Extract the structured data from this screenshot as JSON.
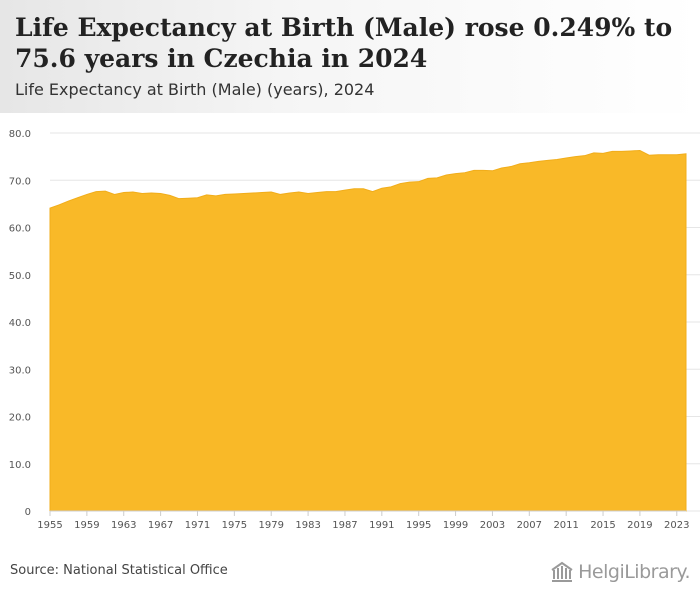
{
  "header": {
    "title": "Life Expectancy at Birth (Male) rose 0.249% to 75.6 years in Czechia in 2024",
    "subtitle": "Life Expectancy at Birth (Male) (years), 2024"
  },
  "footer": {
    "source": "Source: National Statistical Office",
    "logo_text": "HelgiLibrary."
  },
  "colors": {
    "area": "#f9b928",
    "area_edge": "#f1ad1a",
    "grid": "#e6e6e6",
    "axis": "#cccccc",
    "tick_text": "#555555"
  },
  "chart_data": {
    "type": "area",
    "title": "Life Expectancy at Birth (Male) rose 0.249% to 75.6 years in Czechia in 2024",
    "subtitle": "Life Expectancy at Birth (Male) (years), 2024",
    "ylim": [
      0,
      80
    ],
    "yticks": [
      0,
      10,
      20,
      30,
      40,
      50,
      60,
      70,
      80
    ],
    "ytick_labels": [
      "0",
      "10.0",
      "20.0",
      "30.0",
      "40.0",
      "50.0",
      "60.0",
      "70.0",
      "80.0"
    ],
    "xlim": [
      1955,
      2024
    ],
    "xticks": [
      1955,
      1959,
      1963,
      1967,
      1971,
      1975,
      1979,
      1983,
      1987,
      1991,
      1995,
      1999,
      2003,
      2007,
      2011,
      2015,
      2019,
      2023
    ],
    "grid": true,
    "x": [
      1955,
      1956,
      1957,
      1958,
      1959,
      1960,
      1961,
      1962,
      1963,
      1964,
      1965,
      1966,
      1967,
      1968,
      1969,
      1970,
      1971,
      1972,
      1973,
      1974,
      1975,
      1976,
      1977,
      1978,
      1979,
      1980,
      1981,
      1982,
      1983,
      1984,
      1985,
      1986,
      1987,
      1988,
      1989,
      1990,
      1991,
      1992,
      1993,
      1994,
      1995,
      1996,
      1997,
      1998,
      1999,
      2000,
      2001,
      2002,
      2003,
      2004,
      2005,
      2006,
      2007,
      2008,
      2009,
      2010,
      2011,
      2012,
      2013,
      2014,
      2015,
      2016,
      2017,
      2018,
      2019,
      2020,
      2021,
      2022,
      2023,
      2024
    ],
    "values": [
      64.1,
      64.8,
      65.6,
      66.3,
      67.0,
      67.6,
      67.7,
      67.0,
      67.4,
      67.5,
      67.2,
      67.3,
      67.2,
      66.8,
      66.1,
      66.2,
      66.3,
      66.9,
      66.7,
      67.0,
      67.1,
      67.2,
      67.3,
      67.4,
      67.5,
      67.0,
      67.3,
      67.5,
      67.2,
      67.4,
      67.6,
      67.6,
      67.9,
      68.2,
      68.2,
      67.6,
      68.3,
      68.6,
      69.3,
      69.6,
      69.7,
      70.4,
      70.5,
      71.1,
      71.4,
      71.6,
      72.1,
      72.1,
      72.0,
      72.6,
      72.9,
      73.5,
      73.7,
      74.0,
      74.2,
      74.4,
      74.7,
      75.0,
      75.2,
      75.8,
      75.7,
      76.1,
      76.1,
      76.2,
      76.3,
      75.3,
      75.4,
      75.4,
      75.4,
      75.6
    ]
  }
}
